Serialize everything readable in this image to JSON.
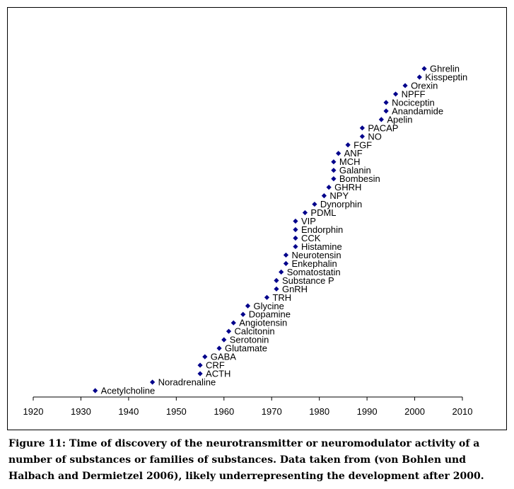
{
  "chart_data": {
    "type": "scatter",
    "title": "",
    "xlabel": "",
    "ylabel": "",
    "xlim": [
      1920,
      2010
    ],
    "xticks": [
      "1920",
      "1930",
      "1940",
      "1950",
      "1960",
      "1970",
      "1980",
      "1990",
      "2000",
      "2010"
    ],
    "marker_color": "#00008B",
    "points": [
      {
        "label": "Acetylcholine",
        "year": 1933
      },
      {
        "label": "Noradrenaline",
        "year": 1945
      },
      {
        "label": "ACTH",
        "year": 1955
      },
      {
        "label": "CRF",
        "year": 1955
      },
      {
        "label": "GABA",
        "year": 1956
      },
      {
        "label": "Glutamate",
        "year": 1959
      },
      {
        "label": "Serotonin",
        "year": 1960
      },
      {
        "label": "Calcitonin",
        "year": 1961
      },
      {
        "label": "Angiotensin",
        "year": 1962
      },
      {
        "label": "Dopamine",
        "year": 1964
      },
      {
        "label": "Glycine",
        "year": 1965
      },
      {
        "label": "TRH",
        "year": 1969
      },
      {
        "label": "GnRH",
        "year": 1971
      },
      {
        "label": "Substance P",
        "year": 1971
      },
      {
        "label": "Somatostatin",
        "year": 1972
      },
      {
        "label": "Enkephalin",
        "year": 1973
      },
      {
        "label": "Neurotensin",
        "year": 1973
      },
      {
        "label": "Histamine",
        "year": 1975
      },
      {
        "label": "CCK",
        "year": 1975
      },
      {
        "label": "Endorphin",
        "year": 1975
      },
      {
        "label": "VIP",
        "year": 1975
      },
      {
        "label": "PDML",
        "year": 1977
      },
      {
        "label": "Dynorphin",
        "year": 1979
      },
      {
        "label": "NPY",
        "year": 1981
      },
      {
        "label": "GHRH",
        "year": 1982
      },
      {
        "label": "Bombesin",
        "year": 1983
      },
      {
        "label": "Galanin",
        "year": 1983
      },
      {
        "label": "MCH",
        "year": 1983
      },
      {
        "label": "ANF",
        "year": 1984
      },
      {
        "label": "FGF",
        "year": 1986
      },
      {
        "label": "NO",
        "year": 1989
      },
      {
        "label": "PACAP",
        "year": 1989
      },
      {
        "label": "Apelin",
        "year": 1993
      },
      {
        "label": "Anandamide",
        "year": 1994
      },
      {
        "label": "Nociceptin",
        "year": 1994
      },
      {
        "label": "NPFF",
        "year": 1996
      },
      {
        "label": "Orexin",
        "year": 1998
      },
      {
        "label": "Kisspeptin",
        "year": 2001
      },
      {
        "label": "Ghrelin",
        "year": 2002
      }
    ]
  },
  "caption": "Figure 11: Time of discovery of the neurotransmitter or neuromodulator activity of a number of substances or families of substances. Data taken from (von Bohlen und Halbach and Dermietzel 2006), likely underrepresenting the development after 2000."
}
